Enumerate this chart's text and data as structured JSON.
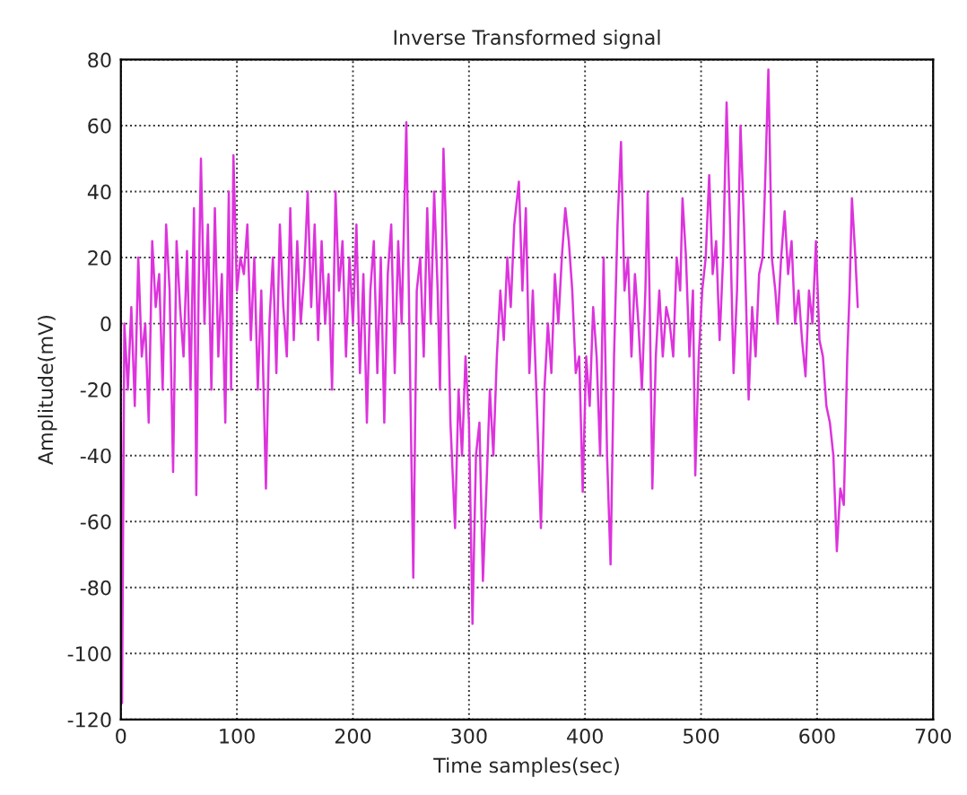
{
  "chart_data": {
    "type": "line",
    "title": "Inverse Transformed signal",
    "xlabel": "Time samples(sec)",
    "ylabel": "Amplitude(mV)",
    "xlim": [
      0,
      700
    ],
    "xticks": [
      0,
      100,
      200,
      300,
      400,
      500,
      600,
      700
    ],
    "ylim": [
      -120,
      80
    ],
    "yticks": [
      -120,
      -100,
      -80,
      -60,
      -40,
      -20,
      0,
      20,
      40,
      60,
      80
    ],
    "grid": true,
    "line_style": "solid",
    "marker": "none",
    "series": [
      {
        "color": "#dd33dd",
        "x": [
          0,
          1,
          3,
          6,
          9,
          12,
          15,
          18,
          21,
          24,
          27,
          30,
          33,
          36,
          39,
          42,
          45,
          48,
          51,
          54,
          57,
          60,
          63,
          65,
          67,
          69,
          72,
          75,
          78,
          81,
          84,
          87,
          90,
          93,
          95,
          97,
          100,
          103,
          106,
          109,
          112,
          115,
          118,
          121,
          125,
          128,
          131,
          134,
          137,
          140,
          143,
          146,
          149,
          152,
          155,
          158,
          161,
          164,
          167,
          170,
          173,
          176,
          179,
          182,
          185,
          188,
          191,
          194,
          197,
          200,
          203,
          206,
          209,
          212,
          215,
          218,
          221,
          224,
          227,
          230,
          233,
          236,
          239,
          242,
          246,
          249,
          252,
          255,
          258,
          261,
          264,
          267,
          270,
          273,
          275,
          278,
          281,
          284,
          288,
          291,
          294,
          297,
          300,
          303,
          306,
          309,
          312,
          315,
          318,
          321,
          324,
          327,
          330,
          333,
          336,
          339,
          343,
          346,
          349,
          352,
          355,
          358,
          362,
          365,
          368,
          371,
          374,
          377,
          380,
          383,
          386,
          389,
          392,
          395,
          398,
          401,
          404,
          407,
          410,
          413,
          416,
          419,
          422,
          425,
          428,
          431,
          434,
          437,
          440,
          443,
          446,
          449,
          452,
          454,
          456,
          458,
          461,
          464,
          467,
          470,
          473,
          476,
          479,
          482,
          484,
          487,
          490,
          493,
          495,
          498,
          501,
          504,
          507,
          510,
          513,
          516,
          519,
          522,
          525,
          528,
          531,
          534,
          537,
          541,
          544,
          547,
          550,
          553,
          555,
          558,
          561,
          564,
          566,
          569,
          572,
          575,
          578,
          581,
          584,
          587,
          590,
          593,
          596,
          599,
          602,
          605,
          608,
          611,
          614,
          617,
          620,
          623,
          626,
          628,
          630,
          633,
          635
        ],
        "values": [
          -30,
          -115,
          0,
          -20,
          5,
          -25,
          20,
          -10,
          0,
          -30,
          25,
          5,
          15,
          -20,
          30,
          10,
          -45,
          25,
          5,
          -10,
          22,
          -20,
          35,
          -52,
          10,
          50,
          0,
          30,
          -20,
          35,
          -10,
          15,
          -30,
          40,
          -20,
          51,
          10,
          20,
          15,
          30,
          -5,
          20,
          -20,
          10,
          -50,
          0,
          20,
          -15,
          30,
          5,
          -10,
          35,
          -5,
          25,
          0,
          15,
          40,
          5,
          30,
          -5,
          25,
          0,
          15,
          -20,
          40,
          10,
          25,
          -10,
          20,
          0,
          30,
          -15,
          15,
          -30,
          10,
          25,
          -15,
          20,
          -30,
          15,
          30,
          -15,
          25,
          0,
          61,
          -10,
          -77,
          10,
          20,
          -10,
          35,
          0,
          40,
          10,
          -20,
          53,
          20,
          -30,
          -62,
          -20,
          -40,
          -10,
          -30,
          -91,
          -40,
          -30,
          -78,
          -50,
          -20,
          -40,
          -10,
          10,
          -5,
          20,
          5,
          30,
          43,
          10,
          35,
          -15,
          10,
          -20,
          -62,
          -20,
          0,
          -15,
          15,
          0,
          20,
          35,
          25,
          10,
          -15,
          -10,
          -51,
          -10,
          -25,
          5,
          -10,
          -40,
          20,
          -40,
          -73,
          -10,
          30,
          55,
          10,
          20,
          -10,
          15,
          0,
          -20,
          10,
          40,
          0,
          -50,
          -10,
          10,
          -10,
          5,
          0,
          -10,
          20,
          10,
          38,
          20,
          -10,
          10,
          -46,
          -10,
          10,
          20,
          45,
          15,
          25,
          -5,
          20,
          67,
          30,
          -15,
          10,
          60,
          30,
          -23,
          5,
          -10,
          15,
          20,
          40,
          77,
          20,
          10,
          0,
          20,
          34,
          15,
          25,
          0,
          10,
          -5,
          -16,
          10,
          0,
          25,
          -5,
          -10,
          -25,
          -30,
          -40,
          -69,
          -50,
          -55,
          -10,
          10,
          38,
          20,
          5
        ]
      }
    ]
  }
}
